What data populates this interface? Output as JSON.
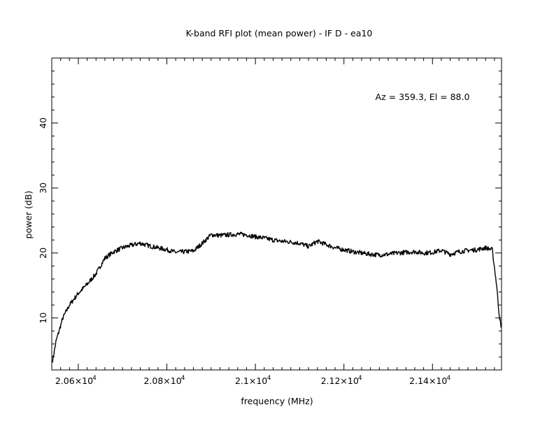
{
  "chart_data": {
    "type": "line",
    "title": "K-band RFI plot (mean power) - IF D - ea10",
    "xlabel": "frequency (MHz)",
    "ylabel": "power (dB)",
    "annotation": "Az = 359.3, El = 88.0",
    "xlim": [
      20540,
      21556
    ],
    "ylim": [
      2,
      50
    ],
    "xticks": [
      {
        "value": 20600,
        "label": "2.06×10",
        "exp": "4"
      },
      {
        "value": 20800,
        "label": "2.08×10",
        "exp": "4"
      },
      {
        "value": 21000,
        "label": "2.1×10",
        "exp": "4"
      },
      {
        "value": 21200,
        "label": "2.12×10",
        "exp": "4"
      },
      {
        "value": 21400,
        "label": "2.14×10",
        "exp": "4"
      }
    ],
    "yticks": [
      {
        "value": 10,
        "label": "10"
      },
      {
        "value": 20,
        "label": "20"
      },
      {
        "value": 30,
        "label": "30"
      },
      {
        "value": 40,
        "label": "40"
      }
    ],
    "line_color": "#000000",
    "grid": false,
    "series": [
      {
        "x": [
          20542,
          20550,
          20565,
          20580,
          20600,
          20620,
          20640,
          20660,
          20680,
          20700,
          20720,
          20740,
          20760,
          20780,
          20800,
          20820,
          20840,
          20860,
          20880,
          20900,
          20920,
          20940,
          20960,
          20980,
          21000,
          21020,
          21040,
          21060,
          21080,
          21100,
          21120,
          21140,
          21160,
          21180,
          21200,
          21220,
          21240,
          21260,
          21280,
          21300,
          21320,
          21340,
          21360,
          21380,
          21400,
          21420,
          21440,
          21460,
          21480,
          21500,
          21520,
          21535,
          21545,
          21550,
          21555
        ],
        "y": [
          3.5,
          6.5,
          10.0,
          12.0,
          13.8,
          15.2,
          16.8,
          19.2,
          20.2,
          20.8,
          21.2,
          21.5,
          21.1,
          20.8,
          20.5,
          20.1,
          20.2,
          20.3,
          21.5,
          22.8,
          22.7,
          22.8,
          22.9,
          22.8,
          22.5,
          22.3,
          22.0,
          21.8,
          21.7,
          21.5,
          21.0,
          21.8,
          21.3,
          20.8,
          20.5,
          20.2,
          20.0,
          19.8,
          19.7,
          19.8,
          20.0,
          20.1,
          20.2,
          20.0,
          20.1,
          20.4,
          19.8,
          20.2,
          20.4,
          20.5,
          20.8,
          20.5,
          15.0,
          11.0,
          8.5
        ]
      }
    ]
  }
}
